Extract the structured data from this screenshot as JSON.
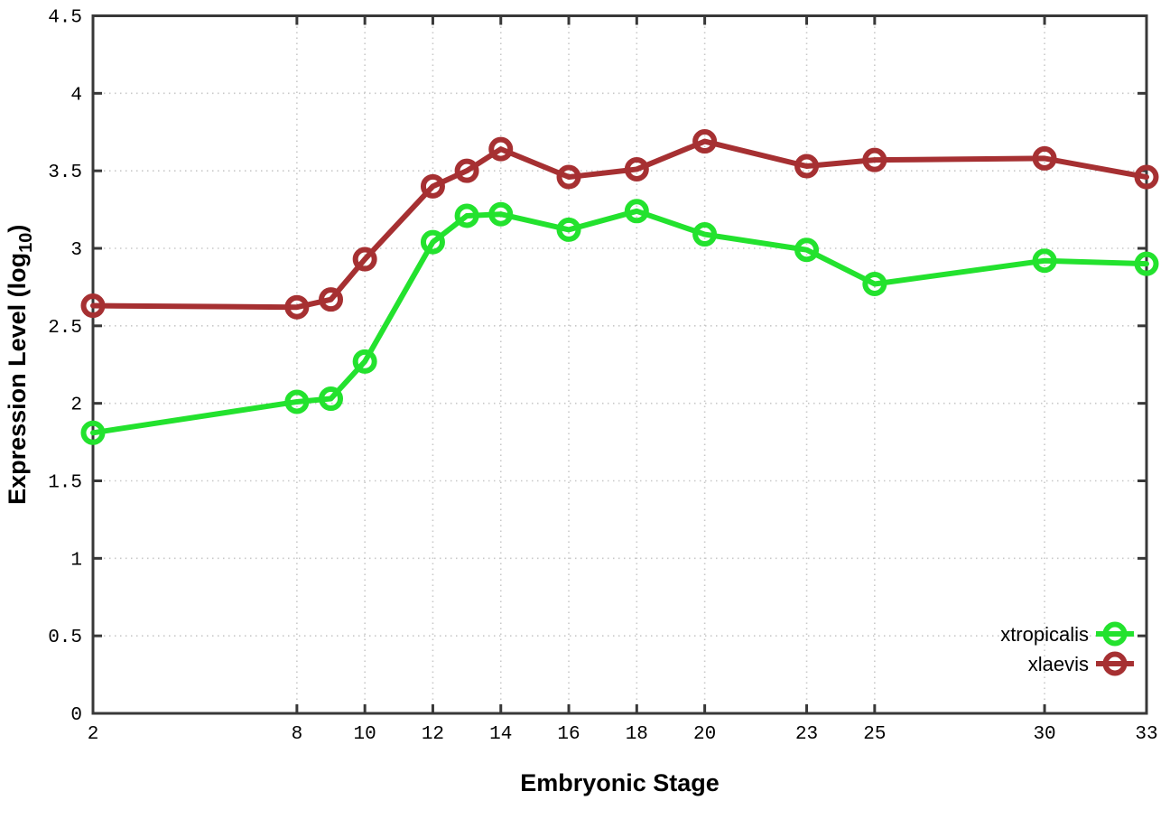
{
  "figure": {
    "background": "#ffffff",
    "border_color": "#383838",
    "grid_color": "#c8c8c8",
    "text_color": "#000000"
  },
  "chart_data": {
    "type": "line",
    "title": "",
    "xlabel": "Embryonic Stage",
    "ylabel": {
      "pre": "Expression Level (log",
      "sub": "10",
      "post": ")"
    },
    "xlim": [
      2,
      33
    ],
    "ylim": [
      0,
      4.5
    ],
    "xticks": [
      2,
      8,
      10,
      12,
      14,
      16,
      18,
      20,
      23,
      25,
      30,
      33
    ],
    "yticks": [
      "0",
      "0.5",
      "1",
      "1.5",
      "2",
      "2.5",
      "3",
      "3.5",
      "4",
      "4.5"
    ],
    "grid": true,
    "grid_style": "dotted",
    "legend_position": "inside-bottom-right",
    "x": [
      2,
      8,
      9,
      10,
      12,
      13,
      14,
      16,
      18,
      20,
      23,
      25,
      30,
      33
    ],
    "series": [
      {
        "name": "xtropicalis",
        "color": "#23e22e",
        "marker": "open-circle",
        "values": [
          1.81,
          2.01,
          2.03,
          2.27,
          3.04,
          3.21,
          3.22,
          3.12,
          3.24,
          3.09,
          2.99,
          2.77,
          2.92,
          2.9
        ]
      },
      {
        "name": "xlaevis",
        "color": "#a63032",
        "marker": "open-circle",
        "values": [
          2.63,
          2.62,
          2.67,
          2.93,
          3.4,
          3.5,
          3.64,
          3.46,
          3.51,
          3.69,
          3.53,
          3.57,
          3.58,
          3.46
        ]
      }
    ]
  }
}
